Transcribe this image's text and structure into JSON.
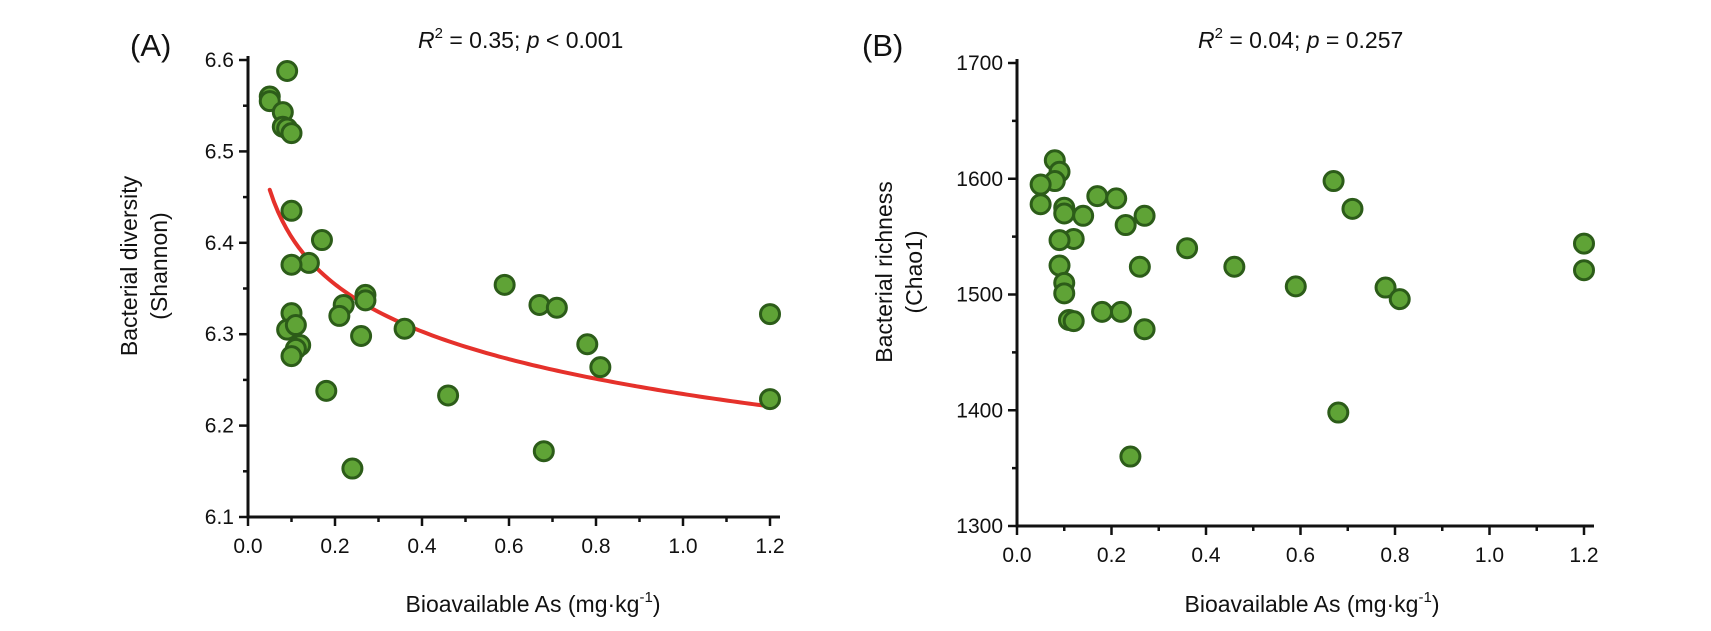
{
  "colors": {
    "point_fill": "#5FA336",
    "point_stroke": "#2C5C19",
    "fit_line": "#E5312B",
    "axis": "#111111"
  },
  "chart_data": [
    {
      "type": "scatter",
      "panel_label": "(A)",
      "stat_r": "R",
      "stat_r_exp": "2",
      "stat_mid": " = 0.35; ",
      "stat_p": "p",
      "stat_end": " < 0.001",
      "xlabel_main": "Bioavailable As (mg·kg",
      "xlabel_exp": "-1",
      "xlabel_end": ")",
      "ylabel_line1": "Bacterial diversity",
      "ylabel_line2": "(Shannon)",
      "xlim": [
        0,
        1.2
      ],
      "ylim": [
        6.1,
        6.6
      ],
      "xticks": [
        "0.0",
        "0.2",
        "0.4",
        "0.6",
        "0.8",
        "1.0",
        "1.2"
      ],
      "yticks": [
        "6.1",
        "6.2",
        "6.3",
        "6.4",
        "6.5",
        "6.6"
      ],
      "points": [
        [
          0.05,
          6.56
        ],
        [
          0.05,
          6.555
        ],
        [
          0.09,
          6.588
        ],
        [
          0.08,
          6.543
        ],
        [
          0.08,
          6.527
        ],
        [
          0.09,
          6.525
        ],
        [
          0.1,
          6.52
        ],
        [
          0.1,
          6.435
        ],
        [
          0.17,
          6.403
        ],
        [
          0.14,
          6.378
        ],
        [
          0.1,
          6.376
        ],
        [
          0.1,
          6.323
        ],
        [
          0.09,
          6.305
        ],
        [
          0.11,
          6.31
        ],
        [
          0.12,
          6.288
        ],
        [
          0.11,
          6.284
        ],
        [
          0.1,
          6.276
        ],
        [
          0.18,
          6.238
        ],
        [
          0.22,
          6.332
        ],
        [
          0.21,
          6.32
        ],
        [
          0.27,
          6.343
        ],
        [
          0.27,
          6.337
        ],
        [
          0.26,
          6.298
        ],
        [
          0.36,
          6.306
        ],
        [
          0.24,
          6.153
        ],
        [
          0.46,
          6.233
        ],
        [
          0.59,
          6.354
        ],
        [
          0.67,
          6.332
        ],
        [
          0.71,
          6.329
        ],
        [
          0.78,
          6.289
        ],
        [
          0.81,
          6.264
        ],
        [
          0.68,
          6.172
        ],
        [
          1.2,
          6.322
        ],
        [
          1.2,
          6.229
        ]
      ],
      "fit": {
        "shown": true,
        "model": "y = a + b*ln(x)",
        "x_start": 0.05,
        "x_end": 1.2,
        "y_start": 6.458,
        "y_end": 6.221
      }
    },
    {
      "type": "scatter",
      "panel_label": "(B)",
      "stat_r": "R",
      "stat_r_exp": "2",
      "stat_mid": " = 0.04; ",
      "stat_p": "p",
      "stat_end": " = 0.257",
      "xlabel_main": "Bioavailable As (mg·kg",
      "xlabel_exp": "-1",
      "xlabel_end": ")",
      "ylabel_line1": "Bacterial richness",
      "ylabel_line2": "(Chao1)",
      "xlim": [
        0,
        1.2
      ],
      "ylim": [
        1300,
        1700
      ],
      "xticks": [
        "0.0",
        "0.2",
        "0.4",
        "0.6",
        "0.8",
        "1.0",
        "1.2"
      ],
      "yticks": [
        "1300",
        "1400",
        "1500",
        "1600",
        "1700"
      ],
      "points": [
        [
          0.08,
          1616
        ],
        [
          0.09,
          1606
        ],
        [
          0.08,
          1598
        ],
        [
          0.05,
          1595
        ],
        [
          0.05,
          1578
        ],
        [
          0.1,
          1575
        ],
        [
          0.1,
          1570
        ],
        [
          0.17,
          1585
        ],
        [
          0.21,
          1583
        ],
        [
          0.14,
          1568
        ],
        [
          0.27,
          1568
        ],
        [
          0.23,
          1560
        ],
        [
          0.12,
          1548
        ],
        [
          0.09,
          1547
        ],
        [
          0.36,
          1540
        ],
        [
          0.09,
          1525
        ],
        [
          0.26,
          1524
        ],
        [
          0.46,
          1524
        ],
        [
          0.1,
          1510
        ],
        [
          0.1,
          1501
        ],
        [
          0.59,
          1507
        ],
        [
          0.78,
          1506
        ],
        [
          0.81,
          1496
        ],
        [
          0.11,
          1478
        ],
        [
          0.12,
          1477
        ],
        [
          0.18,
          1485
        ],
        [
          0.22,
          1485
        ],
        [
          0.27,
          1470
        ],
        [
          0.67,
          1598
        ],
        [
          0.71,
          1574
        ],
        [
          0.68,
          1398
        ],
        [
          0.24,
          1360
        ],
        [
          1.2,
          1544
        ],
        [
          1.2,
          1521
        ]
      ]
    }
  ]
}
